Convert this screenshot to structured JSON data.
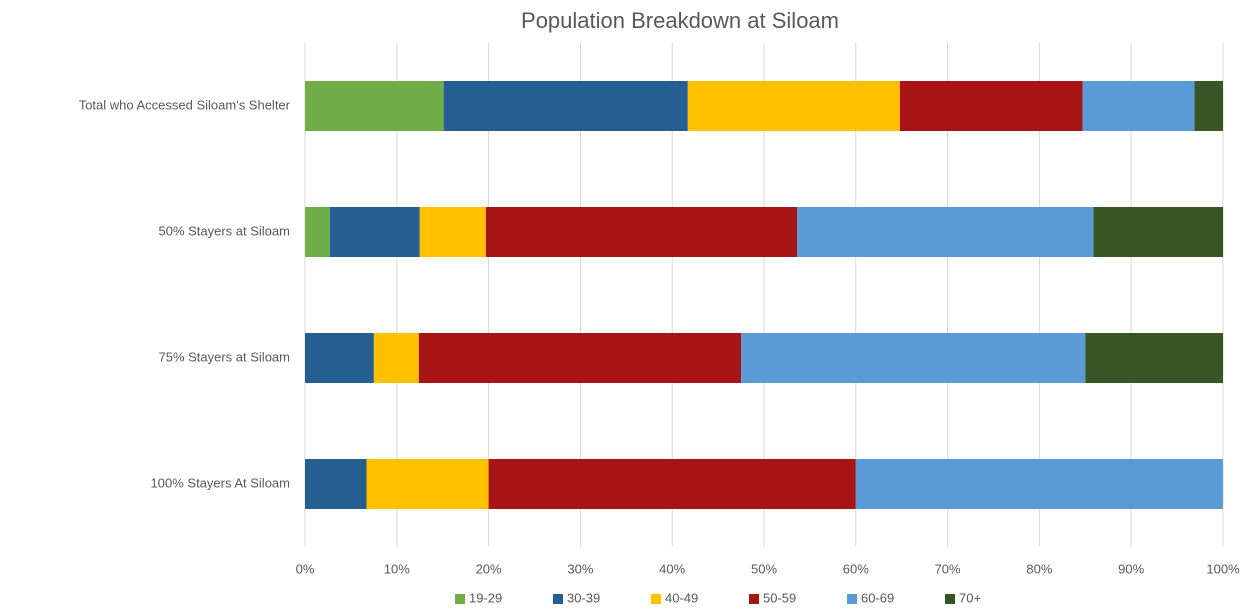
{
  "chart_data": {
    "type": "stacked_barh",
    "title": "Population Breakdown at Siloam",
    "categories": [
      "Total who Accessed Siloam's Shelter",
      "50% Stayers at Siloam",
      "75% Stayers at Siloam",
      "100% Stayers At Siloam"
    ],
    "series": [
      {
        "name": "19-29",
        "color": "#70ad47",
        "values": [
          15.1,
          2.7,
          0,
          0
        ]
      },
      {
        "name": "30-39",
        "color": "#255e91",
        "values": [
          26.6,
          9.8,
          7.5,
          6.7
        ]
      },
      {
        "name": "40-49",
        "color": "#ffc000",
        "values": [
          23.1,
          7.2,
          4.9,
          13.3
        ]
      },
      {
        "name": "50-59",
        "color": "#a61416",
        "values": [
          19.9,
          33.9,
          35.1,
          40
        ]
      },
      {
        "name": "60-69",
        "color": "#5b9bd5",
        "values": [
          12.2,
          32.3,
          37.5,
          40
        ]
      },
      {
        "name": "70+",
        "color": "#375623",
        "values": [
          3.1,
          14.1,
          15.0,
          0
        ]
      }
    ],
    "xlim": [
      0,
      100
    ],
    "xticks": [
      {
        "value": 0,
        "label": "0%"
      },
      {
        "value": 10,
        "label": "10%"
      },
      {
        "value": 20,
        "label": "20%"
      },
      {
        "value": 30,
        "label": "30%"
      },
      {
        "value": 40,
        "label": "40%"
      },
      {
        "value": 50,
        "label": "50%"
      },
      {
        "value": 60,
        "label": "60%"
      },
      {
        "value": 70,
        "label": "70%"
      },
      {
        "value": 80,
        "label": "80%"
      },
      {
        "value": 90,
        "label": "90%"
      },
      {
        "value": 100,
        "label": "100%"
      }
    ],
    "grid": true,
    "legend": "bottom"
  }
}
